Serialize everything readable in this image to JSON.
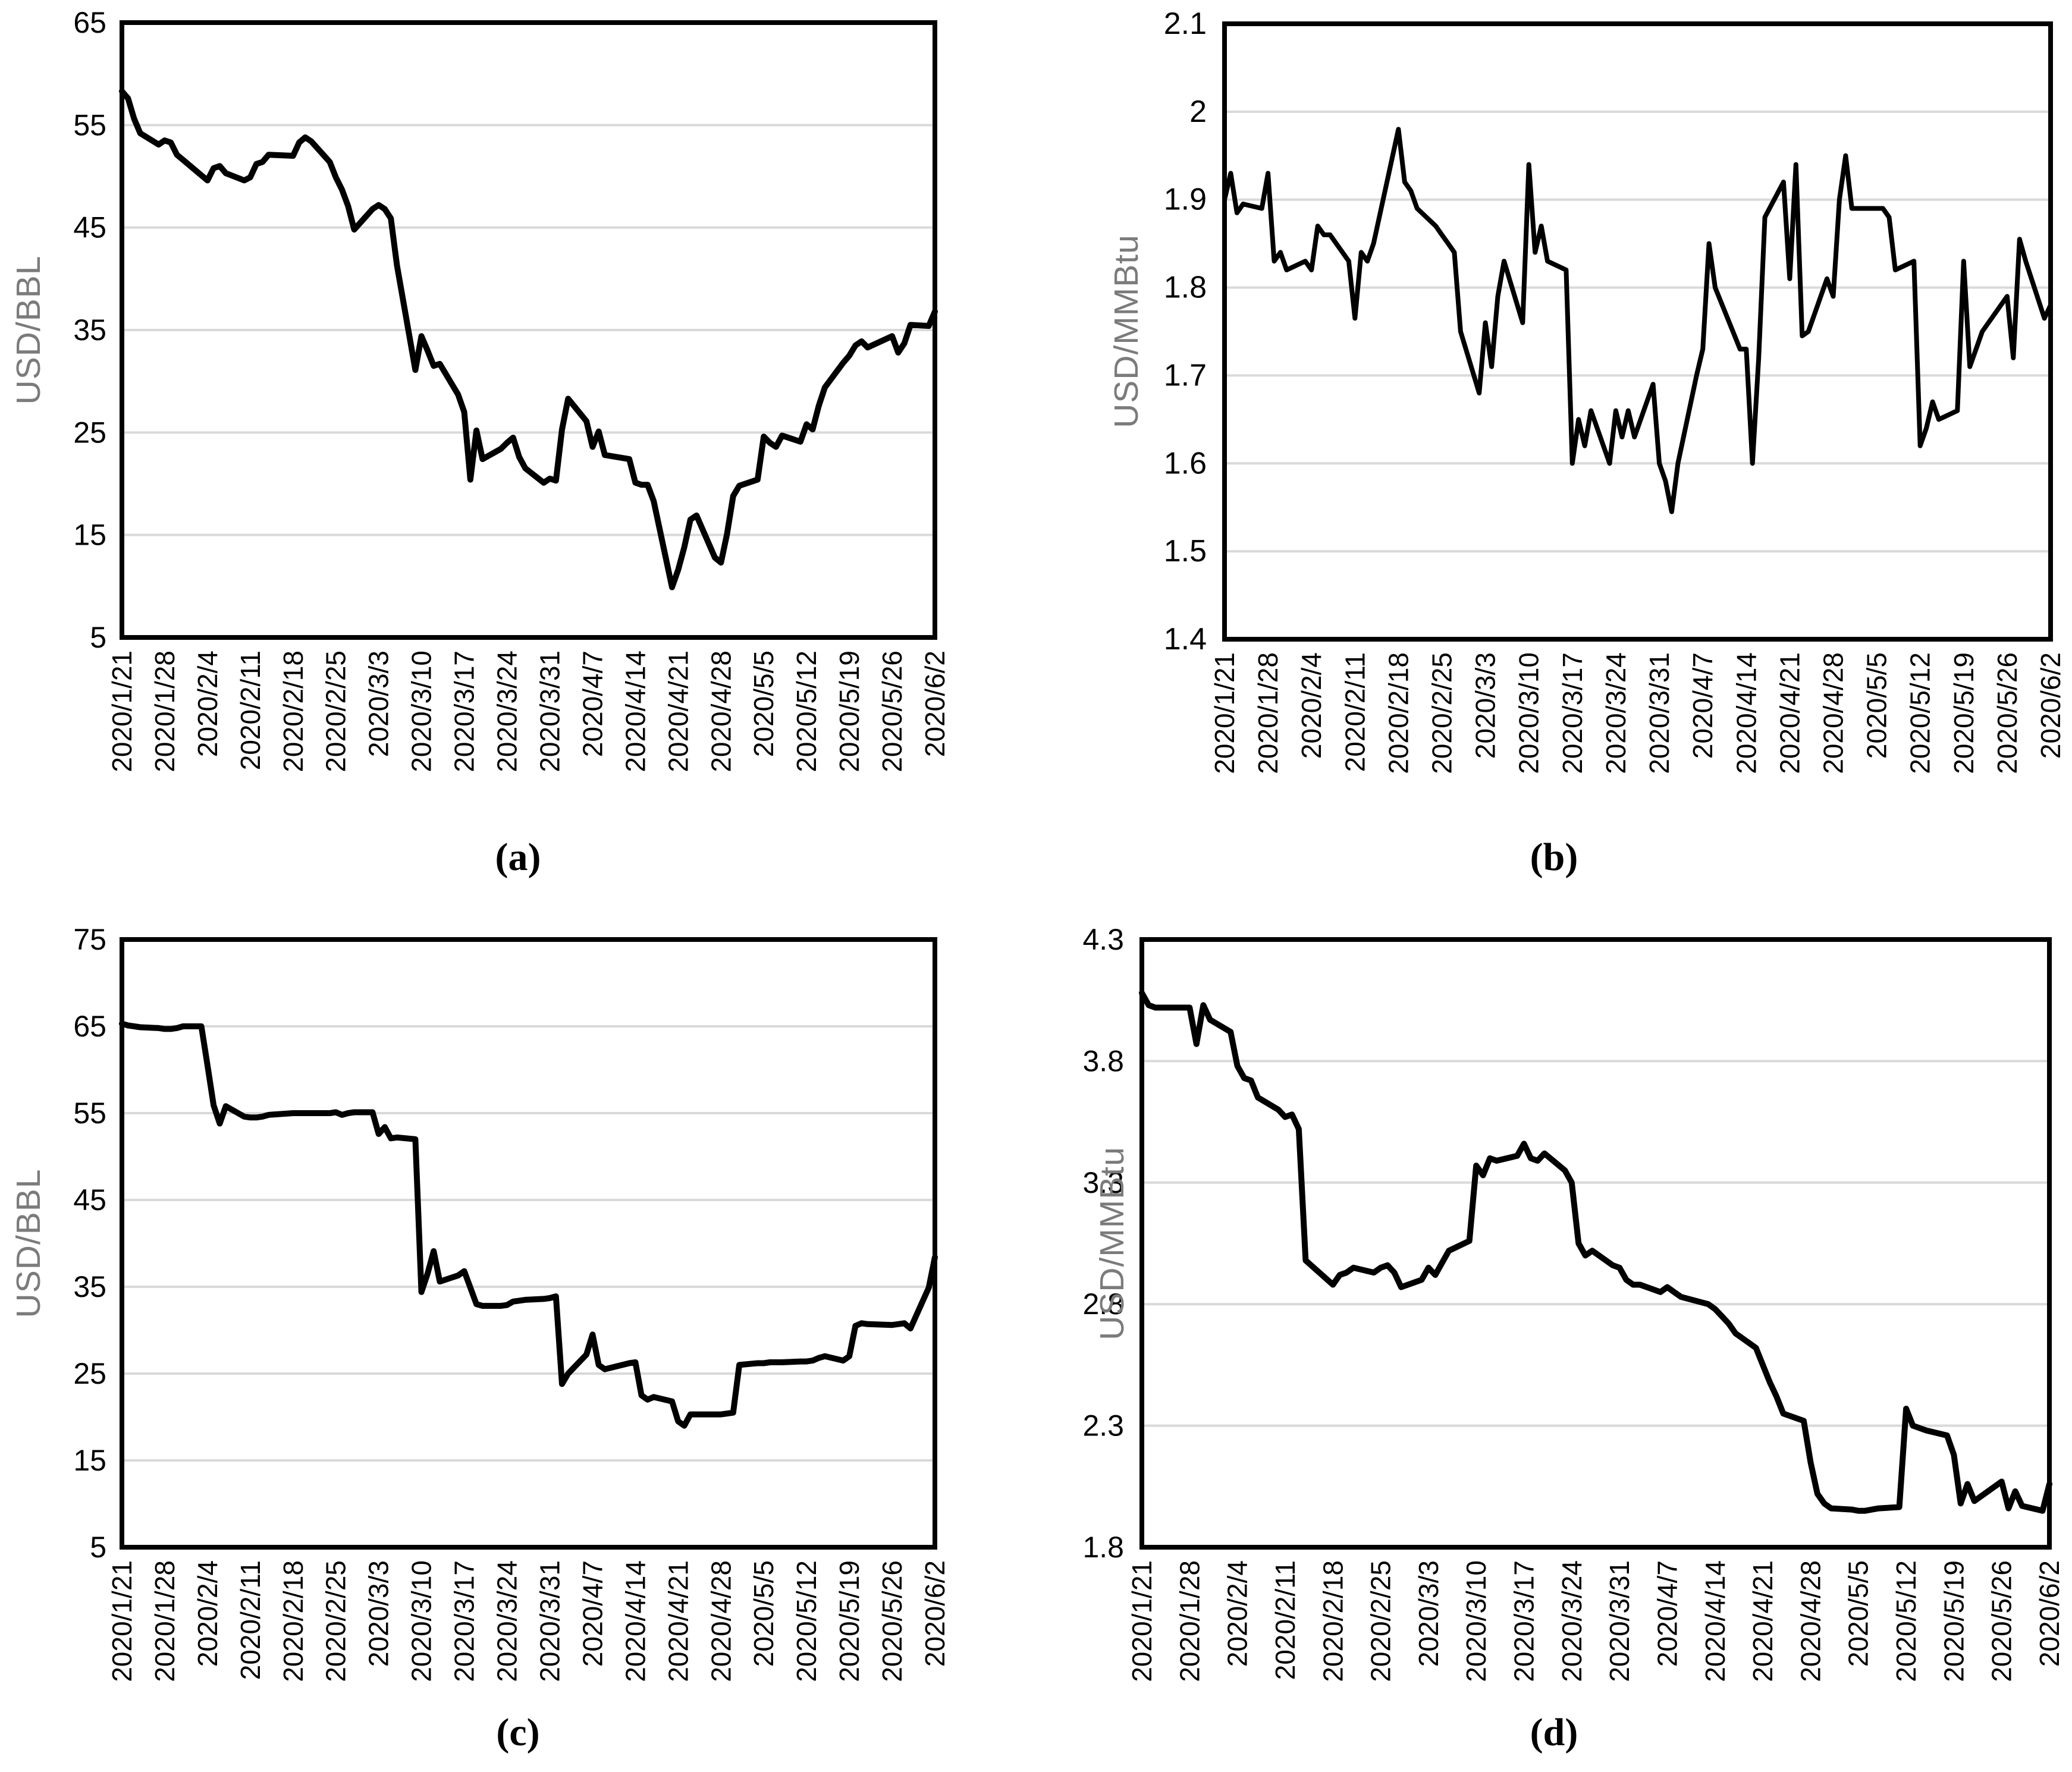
{
  "page": {
    "background": "#ffffff",
    "text_color": "#000000",
    "axis_title_color": "#7b7b7b",
    "grid_color": "#d9d9d9",
    "frame_color": "#000000"
  },
  "chart_data": {
    "type": "line",
    "grid": "horizontal",
    "legend": "none",
    "x_tick_labels": [
      "2020/1/21",
      "2020/1/28",
      "2020/2/4",
      "2020/2/11",
      "2020/2/18",
      "2020/2/25",
      "2020/3/3",
      "2020/3/10",
      "2020/3/17",
      "2020/3/24",
      "2020/3/31",
      "2020/4/7",
      "2020/4/14",
      "2020/4/21",
      "2020/4/28",
      "2020/5/5",
      "2020/5/12",
      "2020/5/19",
      "2020/5/26",
      "2020/6/2"
    ],
    "x_dates": [
      "2020/1/21",
      "2020/1/22",
      "2020/1/23",
      "2020/1/24",
      "2020/1/27",
      "2020/1/28",
      "2020/1/29",
      "2020/1/30",
      "2020/1/31",
      "2020/2/3",
      "2020/2/4",
      "2020/2/5",
      "2020/2/6",
      "2020/2/7",
      "2020/2/10",
      "2020/2/11",
      "2020/2/12",
      "2020/2/13",
      "2020/2/14",
      "2020/2/18",
      "2020/2/19",
      "2020/2/20",
      "2020/2/21",
      "2020/2/24",
      "2020/2/25",
      "2020/2/26",
      "2020/2/27",
      "2020/2/28",
      "2020/3/2",
      "2020/3/3",
      "2020/3/4",
      "2020/3/5",
      "2020/3/6",
      "2020/3/9",
      "2020/3/10",
      "2020/3/11",
      "2020/3/12",
      "2020/3/13",
      "2020/3/16",
      "2020/3/17",
      "2020/3/18",
      "2020/3/19",
      "2020/3/20",
      "2020/3/23",
      "2020/3/24",
      "2020/3/25",
      "2020/3/26",
      "2020/3/27",
      "2020/3/30",
      "2020/3/31",
      "2020/4/1",
      "2020/4/2",
      "2020/4/3",
      "2020/4/6",
      "2020/4/7",
      "2020/4/8",
      "2020/4/9",
      "2020/4/13",
      "2020/4/14",
      "2020/4/15",
      "2020/4/16",
      "2020/4/17",
      "2020/4/20",
      "2020/4/21",
      "2020/4/22",
      "2020/4/23",
      "2020/4/24",
      "2020/4/27",
      "2020/4/28",
      "2020/4/29",
      "2020/4/30",
      "2020/5/1",
      "2020/5/4",
      "2020/5/5",
      "2020/5/6",
      "2020/5/7",
      "2020/5/8",
      "2020/5/11",
      "2020/5/12",
      "2020/5/13",
      "2020/5/14",
      "2020/5/15",
      "2020/5/18",
      "2020/5/19",
      "2020/5/20",
      "2020/5/21",
      "2020/5/22",
      "2020/5/26",
      "2020/5/27",
      "2020/5/28",
      "2020/5/29",
      "2020/6/1",
      "2020/6/2"
    ],
    "charts": [
      {
        "caption": "(a)",
        "ylabel": "USD/BBL",
        "ylim": [
          5,
          65
        ],
        "yticks": [
          5,
          15,
          25,
          35,
          45,
          55,
          65
        ],
        "ytick_labels": [
          "5",
          "15",
          "25",
          "35",
          "45",
          "55",
          "65"
        ],
        "line_color": "#000000",
        "values": [
          58.3,
          57.6,
          55.6,
          54.2,
          53.1,
          53.5,
          53.3,
          52.1,
          51.6,
          50.1,
          49.6,
          50.8,
          51.0,
          50.3,
          49.6,
          49.9,
          51.2,
          51.4,
          52.1,
          52.0,
          53.3,
          53.8,
          53.4,
          51.4,
          49.9,
          48.7,
          47.1,
          44.8,
          46.8,
          47.2,
          46.8,
          45.9,
          41.3,
          31.1,
          34.4,
          33.0,
          31.5,
          31.7,
          28.7,
          27.0,
          20.4,
          25.2,
          22.4,
          23.4,
          24.0,
          24.5,
          22.6,
          21.5,
          20.1,
          20.5,
          20.3,
          25.3,
          28.3,
          26.1,
          23.6,
          25.1,
          22.8,
          22.4,
          20.1,
          19.9,
          19.9,
          18.3,
          9.9,
          11.6,
          13.8,
          16.5,
          16.9,
          12.8,
          12.3,
          15.1,
          18.8,
          19.8,
          20.4,
          24.6,
          24.0,
          23.6,
          24.7,
          24.1,
          25.8,
          25.3,
          27.6,
          29.4,
          31.8,
          32.5,
          33.5,
          33.9,
          33.3,
          34.4,
          32.8,
          33.7,
          35.5,
          35.4,
          36.8
        ]
      },
      {
        "caption": "(b)",
        "ylabel": "USD/MMBtu",
        "ylim": [
          1.4,
          2.1
        ],
        "yticks": [
          1.4,
          1.5,
          1.6,
          1.7,
          1.8,
          1.9,
          2,
          2.1
        ],
        "ytick_labels": [
          "1.4",
          "1.5",
          "1.6",
          "1.7",
          "1.8",
          "1.9",
          "2",
          "2.1"
        ],
        "line_color": "#000000",
        "values": [
          1.9,
          1.93,
          1.885,
          1.895,
          1.89,
          1.93,
          1.83,
          1.84,
          1.82,
          1.83,
          1.82,
          1.87,
          1.86,
          1.86,
          1.83,
          1.765,
          1.84,
          1.83,
          1.85,
          1.98,
          1.92,
          1.91,
          1.89,
          1.87,
          1.86,
          1.85,
          1.84,
          1.75,
          1.68,
          1.76,
          1.71,
          1.79,
          1.83,
          1.76,
          1.94,
          1.84,
          1.87,
          1.83,
          1.82,
          1.6,
          1.65,
          1.62,
          1.66,
          1.6,
          1.66,
          1.63,
          1.66,
          1.63,
          1.69,
          1.6,
          1.58,
          1.545,
          1.6,
          1.7,
          1.73,
          1.85,
          1.8,
          1.73,
          1.73,
          1.6,
          1.72,
          1.88,
          1.92,
          1.81,
          1.94,
          1.745,
          1.75,
          1.81,
          1.79,
          1.9,
          1.95,
          1.89,
          1.89,
          1.89,
          1.89,
          1.88,
          1.82,
          1.83,
          1.62,
          1.64,
          1.67,
          1.65,
          1.66,
          1.83,
          1.71,
          1.73,
          1.75,
          1.79,
          1.72,
          1.855,
          1.83,
          1.765,
          1.78
        ]
      },
      {
        "caption": "(c)",
        "ylabel": "USD/BBL",
        "ylim": [
          5,
          75
        ],
        "yticks": [
          5,
          15,
          25,
          35,
          45,
          55,
          65,
          75
        ],
        "ytick_labels": [
          "5",
          "15",
          "25",
          "35",
          "45",
          "55",
          "65",
          "75"
        ],
        "line_color": "#000000",
        "values": [
          65.3,
          65.1,
          65.0,
          64.9,
          64.8,
          64.7,
          64.7,
          64.8,
          65.0,
          65.0,
          60.5,
          55.9,
          53.8,
          55.8,
          54.6,
          54.5,
          54.5,
          54.6,
          54.8,
          55.0,
          55.0,
          55.0,
          55.0,
          55.0,
          55.1,
          54.8,
          55.0,
          55.1,
          55.1,
          52.6,
          53.4,
          52.1,
          52.2,
          52.0,
          34.4,
          36.5,
          39.1,
          35.6,
          36.3,
          36.8,
          34.9,
          33.0,
          32.8,
          32.8,
          32.9,
          33.3,
          33.4,
          33.5,
          33.6,
          33.7,
          33.9,
          23.8,
          25.0,
          27.2,
          29.5,
          26.0,
          25.5,
          26.2,
          26.3,
          22.5,
          22.0,
          22.3,
          21.8,
          19.5,
          19.0,
          20.3,
          20.3,
          20.3,
          20.3,
          20.4,
          20.5,
          26.0,
          26.2,
          26.2,
          26.3,
          26.3,
          26.3,
          26.4,
          26.4,
          26.5,
          26.8,
          27.0,
          26.5,
          27.0,
          30.5,
          30.8,
          30.7,
          30.6,
          30.7,
          30.8,
          30.2,
          34.9,
          38.4
        ]
      },
      {
        "caption": "(d)",
        "ylabel": "USD/MMBtu",
        "ylim": [
          1.8,
          4.3
        ],
        "yticks": [
          1.8,
          2.3,
          2.8,
          3.3,
          3.8,
          4.3
        ],
        "ytick_labels": [
          "1.8",
          "2.3",
          "2.8",
          "3.3",
          "3.8",
          "4.3"
        ],
        "line_color": "#000000",
        "values": [
          4.08,
          4.03,
          4.02,
          4.02,
          4.02,
          4.02,
          3.87,
          4.03,
          3.97,
          3.92,
          3.78,
          3.73,
          3.72,
          3.65,
          3.6,
          3.57,
          3.58,
          3.52,
          2.98,
          2.88,
          2.92,
          2.93,
          2.95,
          2.93,
          2.95,
          2.96,
          2.93,
          2.87,
          2.9,
          2.95,
          2.92,
          2.97,
          3.02,
          3.06,
          3.37,
          3.33,
          3.4,
          3.39,
          3.41,
          3.46,
          3.4,
          3.39,
          3.42,
          3.35,
          3.3,
          3.05,
          3.0,
          3.02,
          2.96,
          2.95,
          2.9,
          2.88,
          2.88,
          2.85,
          2.87,
          2.85,
          2.83,
          2.8,
          2.78,
          2.75,
          2.72,
          2.68,
          2.62,
          2.55,
          2.48,
          2.42,
          2.35,
          2.32,
          2.15,
          2.02,
          1.98,
          1.96,
          1.955,
          1.95,
          1.95,
          1.955,
          1.96,
          1.965,
          2.37,
          2.3,
          2.29,
          2.28,
          2.26,
          2.18,
          1.98,
          2.06,
          1.99,
          2.07,
          1.96,
          2.03,
          1.97,
          1.95,
          2.06
        ]
      }
    ]
  }
}
